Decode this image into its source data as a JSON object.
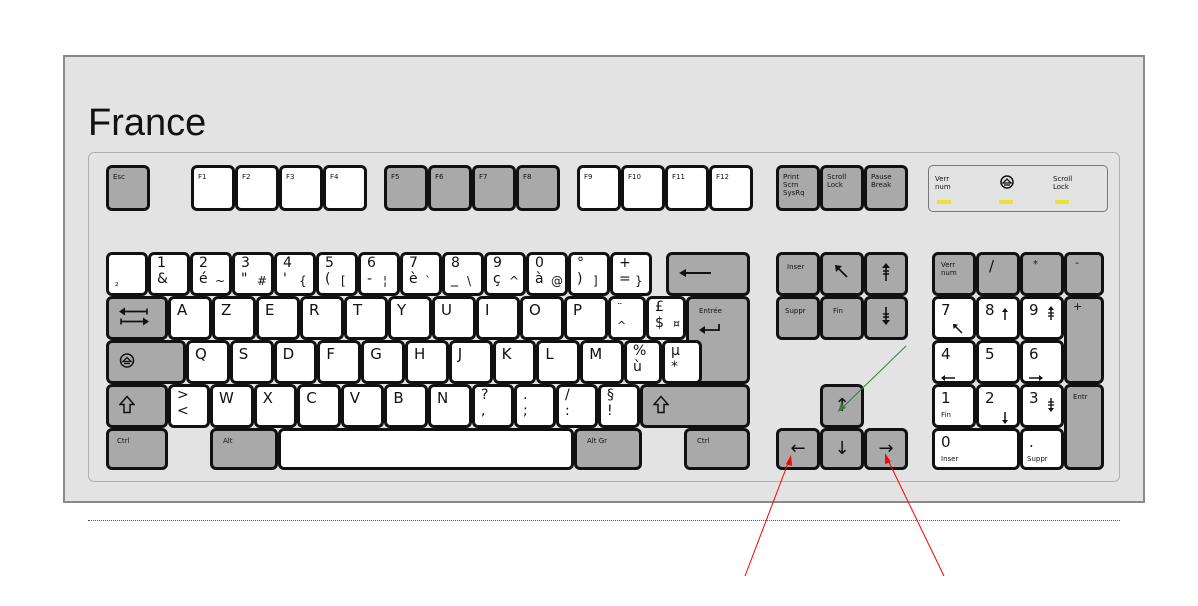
{
  "title": "France",
  "colors": {
    "frame": "#e3e3e3",
    "key_white": "#ffffff",
    "key_gray": "#a9a9a9",
    "led": "#e6e43a",
    "arrow_red": "#ff0000",
    "arrow_green": "#3a7a3a"
  },
  "leds": {
    "num": "Verr\nnum",
    "caps_icon": "caps-lock-icon",
    "scroll": "Scroll\nLock"
  },
  "keys": {
    "esc": "Esc",
    "f1": "F1",
    "f2": "F2",
    "f3": "F3",
    "f4": "F4",
    "f5": "F5",
    "f6": "F6",
    "f7": "F7",
    "f8": "F8",
    "f9": "F9",
    "f10": "F10",
    "f11": "F11",
    "f12": "F12",
    "print": "Print\nScrn\nSysRq",
    "scroll": "Scroll\nLock",
    "pause": "Pause\nBreak",
    "r1": [
      {
        "id": "sup2",
        "tl": "",
        "bl": "²",
        "tr": "",
        "br": ""
      },
      {
        "id": "1",
        "tl": "1",
        "bl": "&",
        "tr": "",
        "br": ""
      },
      {
        "id": "2",
        "tl": "2",
        "bl": "é",
        "tr": "",
        "br": "~"
      },
      {
        "id": "3",
        "tl": "3",
        "bl": "\"",
        "tr": "",
        "br": "#"
      },
      {
        "id": "4",
        "tl": "4",
        "bl": "'",
        "tr": "",
        "br": "{"
      },
      {
        "id": "5",
        "tl": "5",
        "bl": "(",
        "tr": "",
        "br": "["
      },
      {
        "id": "6",
        "tl": "6",
        "bl": "-",
        "tr": "",
        "br": "¦"
      },
      {
        "id": "7",
        "tl": "7",
        "bl": "è",
        "tr": "",
        "br": "`"
      },
      {
        "id": "8",
        "tl": "8",
        "bl": "_",
        "tr": "",
        "br": "\\"
      },
      {
        "id": "9",
        "tl": "9",
        "bl": "ç",
        "tr": "",
        "br": "^"
      },
      {
        "id": "0",
        "tl": "0",
        "bl": "à",
        "tr": "",
        "br": "@"
      },
      {
        "id": "deg",
        "tl": "°",
        "bl": ")",
        "tr": "",
        "br": "]"
      },
      {
        "id": "plus",
        "tl": "+",
        "bl": "=",
        "tr": "",
        "br": "}"
      }
    ],
    "backspace_icon": "backspace-arrow-icon",
    "tab_icon": "tab-arrows-icon",
    "r2": [
      "A",
      "Z",
      "E",
      "R",
      "T",
      "Y",
      "U",
      "I",
      "O",
      "P"
    ],
    "caret_top": "¨",
    "caret_bot": "^",
    "dollar_top": "£",
    "dollar_bot": "$",
    "dollar_extra": "¤",
    "enter": "Entrée",
    "caps_icon": "caps-lock-icon",
    "r3": [
      "Q",
      "S",
      "D",
      "F",
      "G",
      "H",
      "J",
      "K",
      "L",
      "M"
    ],
    "pct_top": "%",
    "pct_bot": "ù",
    "mu_top": "µ",
    "mu_bot": "*",
    "shift_icon": "shift-icon",
    "lt_top": ">",
    "lt_bot": "<",
    "r4": [
      "W",
      "X",
      "C",
      "V",
      "B",
      "N"
    ],
    "q_top": "?",
    "q_bot": ",",
    "dot_top": ".",
    "dot_bot": ";",
    "slash_top": "/",
    "slash_bot": ":",
    "sect_top": "§",
    "sect_bot": "!",
    "ctrl": "Ctrl",
    "alt": "Alt",
    "altgr": "Alt Gr",
    "insert": "Inser",
    "home_icon": "home-arrow-icon",
    "pgup_icon": "page-up-icon",
    "delete": "Suppr",
    "end": "Fin",
    "pgdn_icon": "page-down-icon",
    "up": "↑",
    "left": "←",
    "down": "↓",
    "right": "→",
    "numlock": "Verr\nnum",
    "np_div": "/",
    "np_mul": "*",
    "np_minus": "-",
    "np_plus": "+",
    "np_enter": "Entr",
    "np7": "7",
    "np8": "8",
    "np9": "9",
    "np4": "4",
    "np5": "5",
    "np6": "6",
    "np1": "1",
    "np2": "2",
    "np3": "3",
    "np0": "0",
    "np_fin": "Fin",
    "np_inser": "Inser",
    "np_dot": ".",
    "np_suppr": "Suppr"
  }
}
